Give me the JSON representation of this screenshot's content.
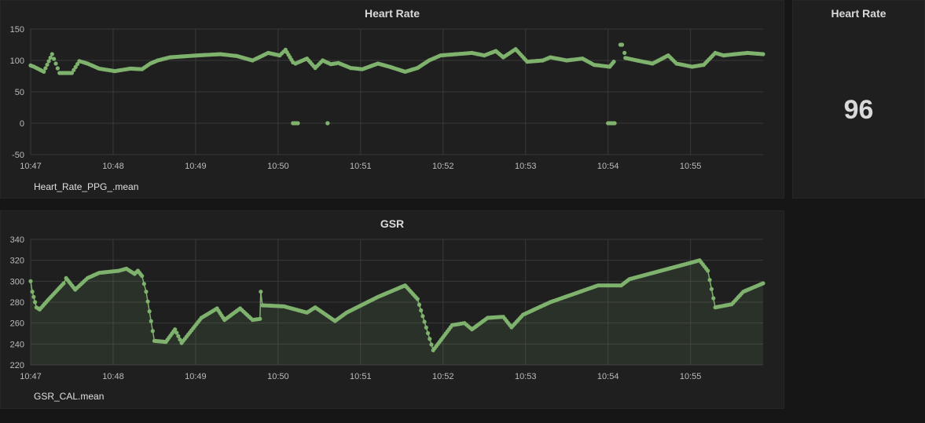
{
  "colors": {
    "series": "#7eb26d",
    "grid": "#3a3a3a",
    "fill": "rgba(126,178,109,0.12)"
  },
  "hr_panel": {
    "title": "Heart Rate",
    "legend": "Heart_Rate_PPG_.mean"
  },
  "gsr_panel": {
    "title": "GSR",
    "legend": "GSR_CAL.mean"
  },
  "stat_panel": {
    "title": "Heart Rate",
    "value": "96"
  },
  "chart_data": [
    {
      "type": "scatter",
      "title": "Heart Rate",
      "x_unit": "minutes after 10:47",
      "xlim": [
        0,
        8.88
      ],
      "ylim": [
        -50,
        150
      ],
      "yticks": [
        "150",
        "100",
        "50",
        "0",
        "-50"
      ],
      "ytick_values": [
        150,
        100,
        50,
        0,
        -50
      ],
      "xticks": [
        "10:47",
        "10:48",
        "10:49",
        "10:50",
        "10:51",
        "10:52",
        "10:53",
        "10:54",
        "10:55"
      ],
      "series": [
        {
          "name": "Heart_Rate_PPG_.mean",
          "segments": [
            [
              [
                0,
                92
              ],
              [
                0.04,
                90
              ],
              [
                0.16,
                82
              ],
              [
                0.26,
                110
              ],
              [
                0.35,
                80
              ],
              [
                0.5,
                80
              ],
              [
                0.59,
                99
              ],
              [
                0.69,
                95
              ],
              [
                0.83,
                87
              ],
              [
                1.02,
                83
              ],
              [
                1.21,
                87
              ],
              [
                1.35,
                86
              ],
              [
                1.45,
                95
              ],
              [
                1.54,
                100
              ],
              [
                1.69,
                105
              ],
              [
                2.02,
                108
              ],
              [
                2.3,
                110
              ],
              [
                2.5,
                107
              ],
              [
                2.69,
                100
              ],
              [
                2.88,
                112
              ],
              [
                3.02,
                108
              ],
              [
                3.09,
                117
              ],
              [
                3.18,
                97
              ]
            ],
            [
              [
                3.21,
                95
              ],
              [
                3.35,
                103
              ],
              [
                3.45,
                88
              ],
              [
                3.54,
                100
              ],
              [
                3.64,
                94
              ],
              [
                3.73,
                96
              ],
              [
                3.88,
                88
              ],
              [
                4.02,
                86
              ],
              [
                4.21,
                95
              ],
              [
                4.35,
                90
              ],
              [
                4.54,
                82
              ],
              [
                4.69,
                88
              ],
              [
                4.83,
                100
              ],
              [
                4.97,
                108
              ],
              [
                5.16,
                110
              ],
              [
                5.35,
                112
              ],
              [
                5.5,
                108
              ],
              [
                5.64,
                115
              ],
              [
                5.73,
                105
              ],
              [
                5.88,
                118
              ],
              [
                6.02,
                98
              ],
              [
                6.21,
                100
              ],
              [
                6.3,
                105
              ],
              [
                6.5,
                100
              ],
              [
                6.69,
                103
              ],
              [
                6.83,
                93
              ],
              [
                7.02,
                90
              ],
              [
                7.07,
                98
              ]
            ],
            [
              [
                7.15,
                125
              ],
              [
                7.17,
                125
              ]
            ],
            [
              [
                7.2,
                112
              ],
              [
                7.21,
                104
              ],
              [
                7.35,
                100
              ],
              [
                7.54,
                95
              ],
              [
                7.73,
                108
              ],
              [
                7.83,
                95
              ],
              [
                8.02,
                90
              ],
              [
                8.16,
                93
              ],
              [
                8.3,
                112
              ],
              [
                8.4,
                108
              ],
              [
                8.54,
                110
              ],
              [
                8.69,
                112
              ],
              [
                8.88,
                110
              ]
            ],
            [
              [
                3.18,
                0
              ],
              [
                3.24,
                0
              ]
            ],
            [
              [
                3.6,
                0
              ],
              [
                3.6,
                0
              ]
            ],
            [
              [
                7.0,
                0
              ],
              [
                7.08,
                0
              ]
            ]
          ]
        }
      ]
    },
    {
      "type": "area",
      "title": "GSR",
      "x_unit": "minutes after 10:47",
      "xlim": [
        0,
        8.88
      ],
      "ylim": [
        220,
        340
      ],
      "yticks": [
        "340",
        "320",
        "300",
        "280",
        "260",
        "240",
        "220"
      ],
      "ytick_values": [
        340,
        320,
        300,
        280,
        260,
        240,
        220
      ],
      "xticks": [
        "10:47",
        "10:48",
        "10:49",
        "10:50",
        "10:51",
        "10:52",
        "10:53",
        "10:54",
        "10:55"
      ],
      "series": [
        {
          "name": "GSR_CAL.mean",
          "segments": [
            [
              [
                0,
                300
              ],
              [
                0.02,
                290
              ],
              [
                0.07,
                275
              ],
              [
                0.11,
                273
              ],
              [
                0.21,
                282
              ],
              [
                0.4,
                298
              ],
              [
                0.43,
                303
              ],
              [
                0.54,
                292
              ],
              [
                0.69,
                303
              ],
              [
                0.83,
                308
              ],
              [
                1.07,
                310
              ],
              [
                1.16,
                312
              ],
              [
                1.26,
                307
              ],
              [
                1.3,
                310
              ],
              [
                1.35,
                305
              ],
              [
                1.4,
                290
              ],
              [
                1.5,
                243
              ],
              [
                1.64,
                242
              ],
              [
                1.75,
                254
              ],
              [
                1.83,
                241
              ],
              [
                2.07,
                265
              ],
              [
                2.26,
                274
              ],
              [
                2.35,
                263
              ],
              [
                2.54,
                274
              ],
              [
                2.69,
                263
              ],
              [
                2.78,
                264
              ],
              [
                2.79,
                290
              ],
              [
                2.81,
                277
              ],
              [
                3.07,
                276
              ],
              [
                3.35,
                270
              ],
              [
                3.45,
                275
              ],
              [
                3.69,
                262
              ],
              [
                3.83,
                270
              ],
              [
                4.21,
                285
              ],
              [
                4.54,
                296
              ],
              [
                4.69,
                283
              ],
              [
                4.88,
                234
              ],
              [
                5.11,
                258
              ],
              [
                5.26,
                260
              ],
              [
                5.35,
                254
              ],
              [
                5.54,
                265
              ],
              [
                5.73,
                266
              ],
              [
                5.83,
                256
              ],
              [
                5.97,
                268
              ],
              [
                6.3,
                280
              ],
              [
                6.88,
                296
              ],
              [
                7.16,
                296
              ],
              [
                7.26,
                302
              ],
              [
                7.64,
                310
              ],
              [
                8.02,
                318
              ],
              [
                8.11,
                320
              ],
              [
                8.21,
                310
              ],
              [
                8.3,
                275
              ],
              [
                8.5,
                278
              ],
              [
                8.64,
                290
              ],
              [
                8.88,
                298
              ]
            ]
          ]
        }
      ]
    }
  ]
}
